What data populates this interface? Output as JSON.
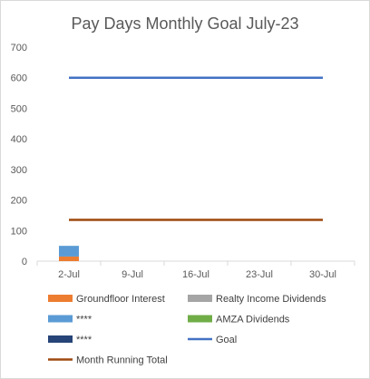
{
  "chart_data": {
    "type": "bar",
    "title": "Pay Days Monthly Goal July-23",
    "xlabel": "",
    "ylabel": "",
    "categories": [
      "2-Jul",
      "9-Jul",
      "16-Jul",
      "23-Jul",
      "30-Jul"
    ],
    "ylim": [
      0,
      700
    ],
    "yticks": [
      0,
      100,
      200,
      300,
      400,
      500,
      600,
      700
    ],
    "grid": false,
    "legend_position": "bottom",
    "stacked_series": [
      {
        "name": "Groundfloor Interest",
        "color": "#ed7d31",
        "values": [
          15,
          0,
          0,
          0,
          0
        ]
      },
      {
        "name": "Realty Income Dividends",
        "color": "#a5a5a5",
        "values": [
          0,
          0,
          0,
          0,
          0
        ]
      },
      {
        "name": "****",
        "color": "#5b9bd5",
        "values": [
          35,
          0,
          0,
          0,
          0
        ]
      },
      {
        "name": "AMZA Dividends",
        "color": "#70ad47",
        "values": [
          0,
          0,
          0,
          0,
          0
        ]
      },
      {
        "name": "****",
        "color": "#264478",
        "values": [
          0,
          0,
          0,
          0,
          0
        ]
      }
    ],
    "line_series": [
      {
        "name": "Goal",
        "color": "#4472c4",
        "values": [
          600,
          600,
          600,
          600,
          600
        ]
      },
      {
        "name": "Month Running Total",
        "color": "#9e480e",
        "values": [
          135,
          135,
          135,
          135,
          135
        ]
      }
    ],
    "legend": [
      {
        "label": "Groundfloor Interest",
        "color": "#ed7d31",
        "kind": "box"
      },
      {
        "label": "Realty Income Dividends",
        "color": "#a5a5a5",
        "kind": "box"
      },
      {
        "label": "****",
        "color": "#5b9bd5",
        "kind": "box"
      },
      {
        "label": "AMZA Dividends",
        "color": "#70ad47",
        "kind": "box"
      },
      {
        "label": "****",
        "color": "#264478",
        "kind": "box"
      },
      {
        "label": "Goal",
        "color": "#4472c4",
        "kind": "line"
      },
      {
        "label": "Month Running Total",
        "color": "#9e480e",
        "kind": "line"
      }
    ]
  }
}
